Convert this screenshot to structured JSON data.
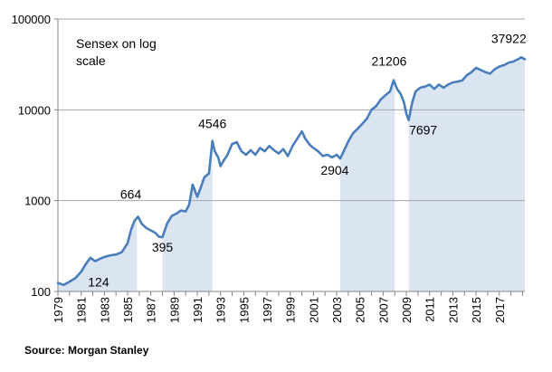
{
  "chart_data": {
    "type": "line",
    "title": "",
    "annotation_text": [
      "Sensex on log",
      "scale"
    ],
    "y_scale": "log",
    "ylim": [
      100,
      100000
    ],
    "y_ticks": [
      "100",
      "1000",
      "10000",
      "100000"
    ],
    "xlim": [
      1979,
      2019.2
    ],
    "x_ticks": [
      "1979",
      "1981",
      "1983",
      "1985",
      "1987",
      "1989",
      "1991",
      "1993",
      "1995",
      "1997",
      "1999",
      "2001",
      "2003",
      "2005",
      "2007",
      "2009",
      "2011",
      "2013",
      "2015",
      "2017"
    ],
    "grid": "horizontal",
    "colors": {
      "line": "#4a7ebb",
      "shade": "#dbe5f1",
      "grid": "#a6a6a6",
      "axis": "#868686"
    },
    "shaded_periods": [
      [
        1979,
        1985.8
      ],
      [
        1988.0,
        1992.3
      ],
      [
        2003.3,
        2008.0
      ],
      [
        2009.2,
        2019.2
      ]
    ],
    "series": [
      {
        "x": [
          1979.0,
          1979.5,
          1980.0,
          1980.5,
          1981.0,
          1981.4,
          1981.8,
          1982.2,
          1982.6,
          1983.0,
          1983.5,
          1984.0,
          1984.5,
          1985.0,
          1985.3,
          1985.6,
          1985.9,
          1986.2,
          1986.6,
          1987.0,
          1987.4,
          1987.7,
          1988.0,
          1988.4,
          1988.8,
          1989.2,
          1989.6,
          1990.0,
          1990.3,
          1990.6,
          1991.0,
          1991.3,
          1991.6,
          1992.0,
          1992.3,
          1992.5,
          1992.8,
          1993.0,
          1993.3,
          1993.6,
          1994.0,
          1994.4,
          1994.8,
          1995.2,
          1995.6,
          1996.0,
          1996.4,
          1996.8,
          1997.2,
          1997.6,
          1998.0,
          1998.4,
          1998.8,
          1999.2,
          1999.6,
          2000.0,
          2000.3,
          2000.7,
          2001.0,
          2001.4,
          2001.8,
          2002.2,
          2002.6,
          2003.0,
          2003.3,
          2003.7,
          2004.0,
          2004.4,
          2004.8,
          2005.2,
          2005.6,
          2006.0,
          2006.4,
          2006.8,
          2007.2,
          2007.6,
          2007.9,
          2008.2,
          2008.5,
          2008.8,
          2009.0,
          2009.2,
          2009.5,
          2009.8,
          2010.2,
          2010.6,
          2011.0,
          2011.4,
          2011.8,
          2012.2,
          2012.6,
          2013.0,
          2013.4,
          2013.8,
          2014.2,
          2014.6,
          2015.0,
          2015.4,
          2015.8,
          2016.2,
          2016.6,
          2017.0,
          2017.4,
          2017.8,
          2018.2,
          2018.6,
          2018.9,
          2019.2
        ],
        "values": [
          124,
          118,
          128,
          140,
          165,
          200,
          235,
          215,
          228,
          240,
          250,
          255,
          270,
          340,
          480,
          600,
          664,
          560,
          500,
          470,
          440,
          400,
          395,
          560,
          680,
          720,
          780,
          760,
          900,
          1500,
          1100,
          1400,
          1800,
          2000,
          4546,
          3500,
          3000,
          2400,
          2800,
          3200,
          4200,
          4400,
          3500,
          3200,
          3600,
          3200,
          3800,
          3500,
          4000,
          3600,
          3300,
          3700,
          3100,
          4000,
          4800,
          5800,
          4800,
          4100,
          3800,
          3500,
          3100,
          3200,
          3000,
          3200,
          2904,
          3700,
          4500,
          5500,
          6200,
          7000,
          8000,
          10000,
          11000,
          13000,
          14500,
          16000,
          21206,
          17000,
          15000,
          12000,
          9000,
          7697,
          12000,
          16000,
          17500,
          18000,
          19000,
          17000,
          19000,
          17500,
          19000,
          20000,
          20500,
          21000,
          24000,
          26000,
          29000,
          27500,
          26000,
          25000,
          28000,
          30000,
          31000,
          33000,
          34000,
          36000,
          37922,
          36000
        ]
      }
    ],
    "data_labels": [
      {
        "x": 1980.5,
        "y": 124,
        "text": "124"
      },
      {
        "x": 1985.9,
        "y": 664,
        "text": "664"
      },
      {
        "x": 1988.0,
        "y": 395,
        "text": "395"
      },
      {
        "x": 1992.3,
        "y": 4546,
        "text": "4546"
      },
      {
        "x": 2003.3,
        "y": 2904,
        "text": "2904"
      },
      {
        "x": 2007.9,
        "y": 21206,
        "text": "21206"
      },
      {
        "x": 2009.2,
        "y": 7697,
        "text": "7697"
      },
      {
        "x": 2018.6,
        "y": 37922,
        "text": "37922"
      }
    ]
  },
  "footer": {
    "source": "Source: Morgan Stanley"
  }
}
